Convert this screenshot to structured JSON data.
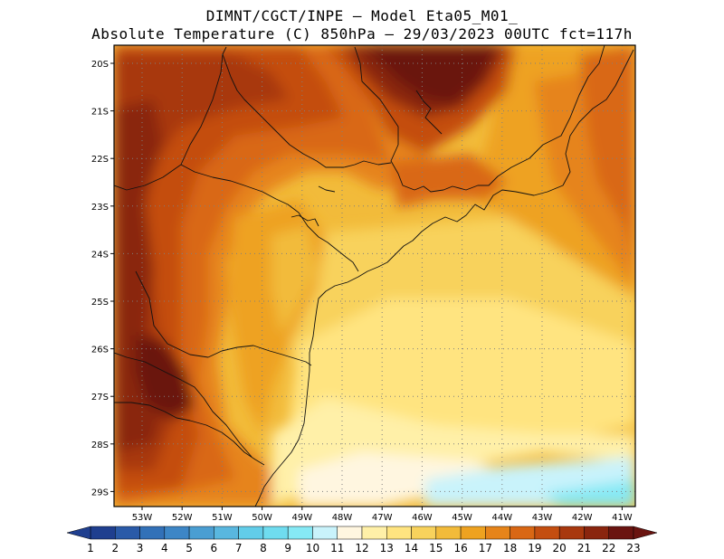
{
  "title": {
    "line1": "DIMNT/CGCT/INPE –  Model Eta05_M01_",
    "line2": "Absolute Temperature (C) 850hPa –  29/03/2023 00UTC fct=117h"
  },
  "axes": {
    "lat_labels": [
      "20S",
      "21S",
      "22S",
      "23S",
      "24S",
      "25S",
      "26S",
      "27S",
      "28S",
      "29S"
    ],
    "lon_labels": [
      "53W",
      "52W",
      "51W",
      "50W",
      "49W",
      "48W",
      "47W",
      "46W",
      "45W",
      "44W",
      "43W",
      "42W",
      "41W"
    ]
  },
  "colorbar": {
    "labels": [
      "1",
      "2",
      "3",
      "4",
      "5",
      "6",
      "7",
      "8",
      "9",
      "10",
      "11",
      "12",
      "13",
      "14",
      "15",
      "16",
      "17",
      "18",
      "19",
      "20",
      "21",
      "22",
      "23"
    ],
    "colors": [
      "#1f3f8f",
      "#2a5aa8",
      "#3271b8",
      "#3d86c6",
      "#4a9ed2",
      "#59b7df",
      "#62cde9",
      "#6fdcef",
      "#86e9f5",
      "#c9f3fb",
      "#fff6e0",
      "#fff0a8",
      "#ffe480",
      "#f8d25c",
      "#f2bb3a",
      "#eea220",
      "#e6841a",
      "#d96714",
      "#c44e10",
      "#a8380e",
      "#8a250e",
      "#6a1410"
    ]
  }
}
